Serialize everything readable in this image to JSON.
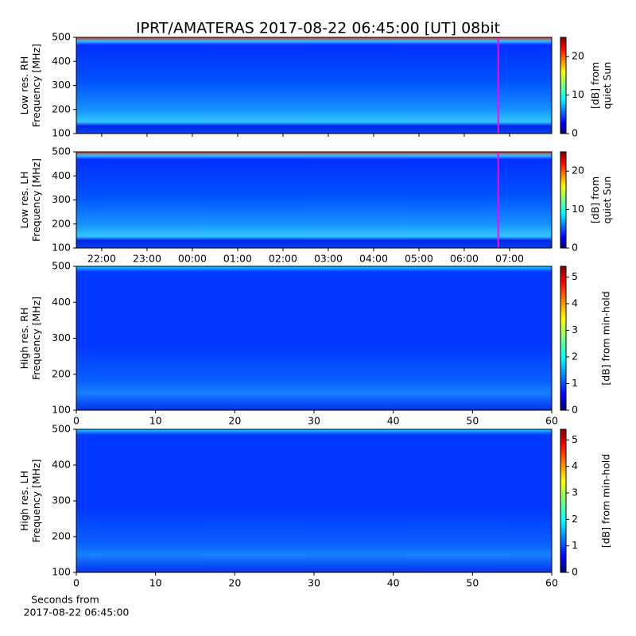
{
  "chart_data": [
    {
      "type": "heatmap",
      "title": "IPRT/AMATERAS 2017-08-22 06:45:00 [UT]   08bit",
      "ylabel": [
        "Low res. RH",
        "Frequency [MHz]"
      ],
      "ylim": [
        100,
        500
      ],
      "yticks": [
        100,
        200,
        300,
        400,
        500
      ],
      "xlim": [
        -2.56,
        7.93
      ],
      "xticks": [
        -2,
        -1,
        0,
        1,
        2,
        3,
        4,
        5,
        6,
        7
      ],
      "xticklabels": false,
      "vline": 6.75,
      "vline_color": "#ff00ff",
      "colorbar": {
        "label": [
          "[dB] from",
          "quiet Sun"
        ],
        "lim": [
          0,
          25
        ],
        "ticks": [
          0,
          10,
          20
        ]
      }
    },
    {
      "type": "heatmap",
      "ylabel": [
        "Low res. LH",
        "Frequency [MHz]"
      ],
      "ylim": [
        100,
        500
      ],
      "yticks": [
        100,
        200,
        300,
        400,
        500
      ],
      "xlim": [
        -2.56,
        7.93
      ],
      "xticks": [
        {
          "value": -2,
          "label": "22:00"
        },
        {
          "value": -1,
          "label": "23:00"
        },
        {
          "value": 0,
          "label": "00:00"
        },
        {
          "value": 1,
          "label": "01:00"
        },
        {
          "value": 2,
          "label": "02:00"
        },
        {
          "value": 3,
          "label": "03:00"
        },
        {
          "value": 4,
          "label": "04:00"
        },
        {
          "value": 5,
          "label": "05:00"
        },
        {
          "value": 6,
          "label": "06:00"
        },
        {
          "value": 7,
          "label": "07:00"
        }
      ],
      "vline": 6.75,
      "vline_color": "#ff00ff",
      "colorbar": {
        "label": [
          "[dB] from",
          "quiet Sun"
        ],
        "lim": [
          0,
          25
        ],
        "ticks": [
          0,
          10,
          20
        ]
      }
    },
    {
      "type": "heatmap",
      "ylabel": [
        "High res. RH",
        "Frequency [MHz]"
      ],
      "ylim": [
        100,
        500
      ],
      "yticks": [
        100,
        200,
        300,
        400,
        500
      ],
      "xlim": [
        0,
        60
      ],
      "xticks": [
        0,
        10,
        20,
        30,
        40,
        50,
        60
      ],
      "colorbar": {
        "label": [
          "[dB] from min-hold"
        ],
        "lim": [
          0,
          5.4
        ],
        "ticks": [
          0,
          1,
          2,
          3,
          4,
          5
        ]
      }
    },
    {
      "type": "heatmap",
      "ylabel": [
        "High res. LH",
        "Frequency [MHz]"
      ],
      "ylim": [
        100,
        500
      ],
      "yticks": [
        100,
        200,
        300,
        400,
        500
      ],
      "xlim": [
        0,
        60
      ],
      "xticks": [
        0,
        10,
        20,
        30,
        40,
        50,
        60
      ],
      "xlabel": [
        "Seconds from",
        "2017-08-22 06:45:00"
      ],
      "colorbar": {
        "label": [
          "[dB] from min-hold"
        ],
        "lim": [
          0,
          5.4
        ],
        "ticks": [
          0,
          1,
          2,
          3,
          4,
          5
        ]
      }
    }
  ]
}
